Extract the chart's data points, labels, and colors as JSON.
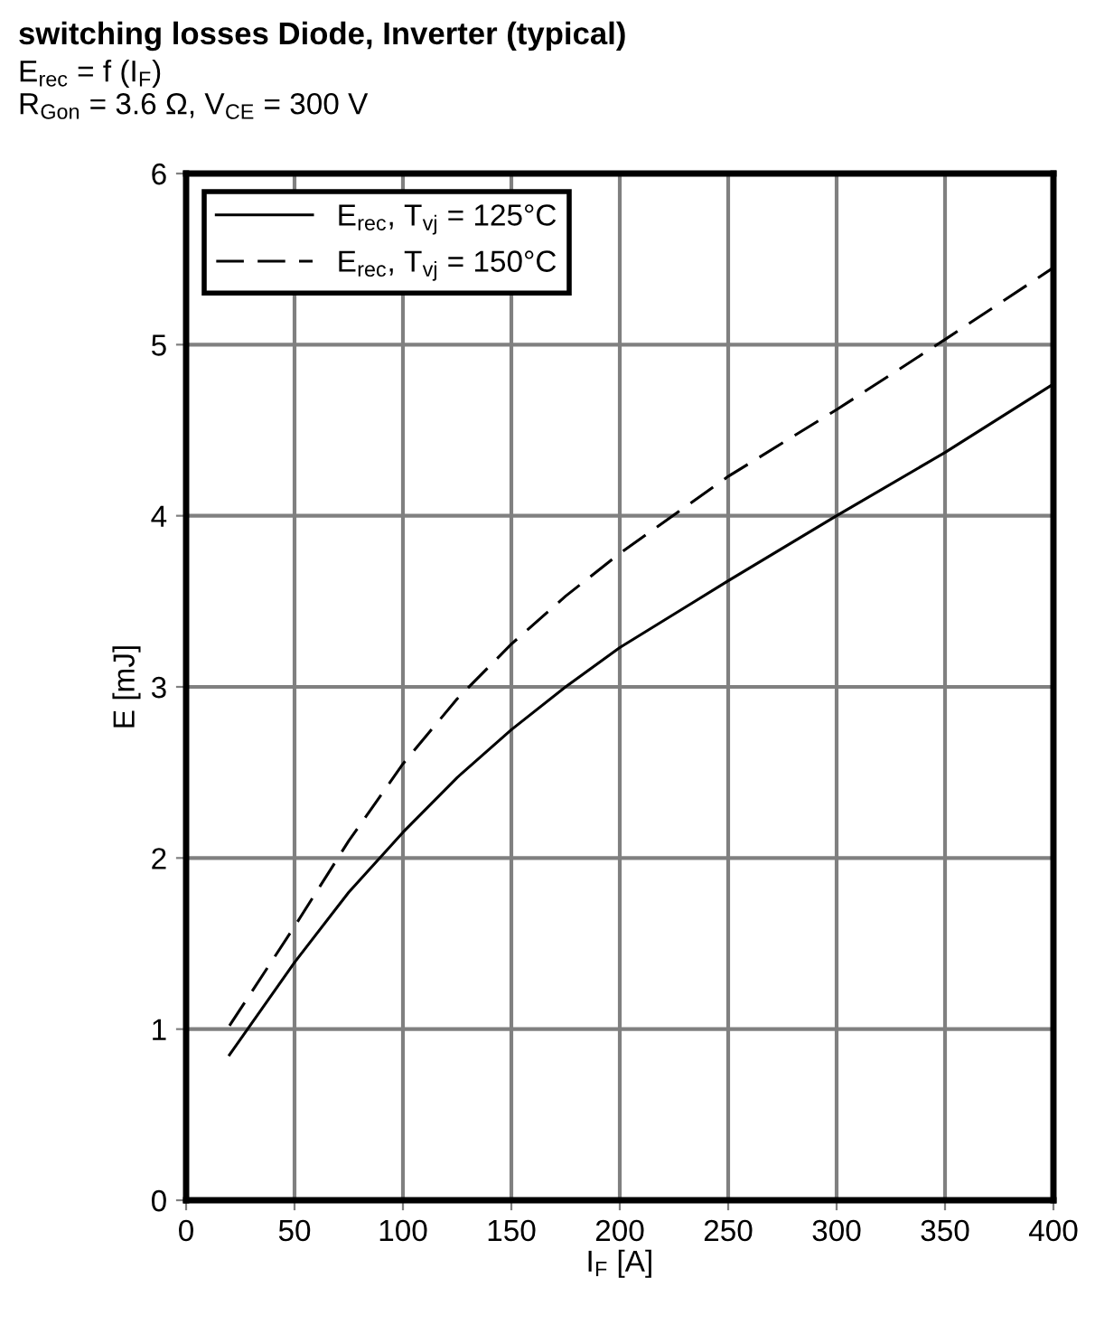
{
  "chart_data": {
    "type": "line",
    "title": "switching losses Diode, Inverter (typical)",
    "subtitle": "E$_{rec}$ = f (I$_{F}$)\nR$_{Gon}$ = 3.6 Ω, V$_{CE}$ = 300 V",
    "xlabel": "I$_{F}$ [A]",
    "ylabel": "E [mJ]",
    "x": [
      20,
      50,
      75,
      100,
      125,
      150,
      175,
      200,
      250,
      300,
      350,
      400
    ],
    "series": [
      {
        "name": "E$_{rec}$, T$_{vj}$ = 125°C",
        "color": "#000000",
        "line_style": "solid",
        "values": [
          0.85,
          1.39,
          1.8,
          2.15,
          2.47,
          2.75,
          3.0,
          3.23,
          3.62,
          4.0,
          4.37,
          4.77
        ]
      },
      {
        "name": "E$_{rec}$, T$_{vj}$ = 150°C",
        "color": "#000000",
        "line_style": "dashed",
        "values": [
          1.02,
          1.6,
          2.1,
          2.55,
          2.93,
          3.25,
          3.53,
          3.78,
          4.23,
          4.62,
          5.03,
          5.45
        ]
      }
    ],
    "xlim": [
      0,
      400
    ],
    "xticks": [
      0,
      50,
      100,
      150,
      200,
      250,
      300,
      350,
      400
    ],
    "ylim": [
      0,
      6
    ],
    "yticks": [
      0,
      1,
      2,
      3,
      4,
      5,
      6
    ],
    "grid": true,
    "legend": "top left",
    "marker": "none"
  }
}
